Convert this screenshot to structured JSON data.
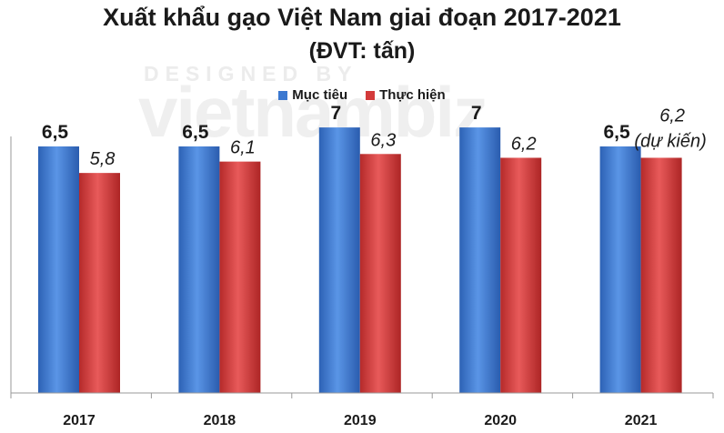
{
  "chart_data": {
    "type": "bar",
    "title": "Xuất khẩu gạo Việt Nam giai đoạn 2017-2021",
    "subtitle": "(ĐVT: tấn)",
    "categories": [
      "2017",
      "2018",
      "2019",
      "2020",
      "2021"
    ],
    "series": [
      {
        "name": "Mục tiêu",
        "values": [
          6.5,
          6.5,
          7,
          7,
          6.5
        ],
        "labels": [
          "6,5",
          "6,5",
          "7",
          "7",
          "6,5"
        ],
        "color": "#3b78d0"
      },
      {
        "name": "Thực hiện",
        "values": [
          5.8,
          6.1,
          6.3,
          6.2,
          6.2
        ],
        "labels": [
          "5,8",
          "6,1",
          "6,3",
          "6,2",
          "6,2"
        ],
        "color": "#d33a3a"
      }
    ],
    "annotations": [
      {
        "category": "2021",
        "series": "Thực hiện",
        "text": "(dự kiến)"
      }
    ],
    "ylim": [
      0,
      10
    ],
    "xlabel": "",
    "ylabel": "",
    "grid": false,
    "legend_position": "top-center"
  },
  "watermark": {
    "small": "DESIGNED BY",
    "big": "vietnambiz"
  }
}
